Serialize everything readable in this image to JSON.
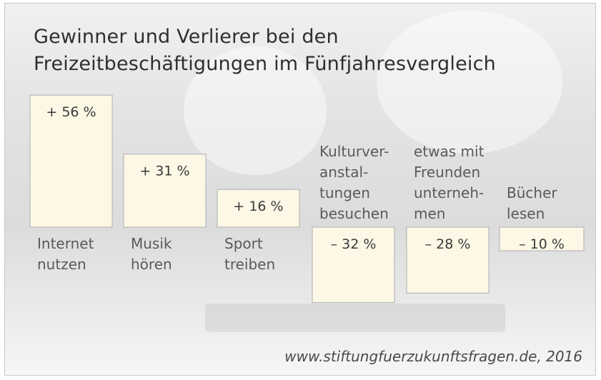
{
  "title_lines": [
    "Gewinner und Verlierer bei den",
    "Freizeitbeschäftigungen im Fünfjahresvergleich"
  ],
  "source": "www.stiftungfuerzukunftsfragen.de, 2016",
  "chart_data": {
    "type": "bar",
    "title": "Gewinner und Verlierer bei den Freizeitbeschäftigungen im Fünfjahresvergleich",
    "categories": [
      "Internet nutzen",
      "Musik hören",
      "Sport treiben",
      "Kulturveranstaltungen besuchen",
      "etwas mit Freunden unternehmen",
      "Bücher lesen"
    ],
    "category_label_lines": [
      [
        "Internet",
        "nutzen"
      ],
      [
        "Musik",
        "hören"
      ],
      [
        "Sport",
        "treiben"
      ],
      [
        "Kulturver-",
        "anstal-",
        "tungen",
        "besuchen"
      ],
      [
        "etwas mit",
        "Freunden",
        "unterneh-",
        "men"
      ],
      [
        "Bücher",
        "lesen"
      ]
    ],
    "values": [
      56,
      31,
      16,
      -32,
      -28,
      -10
    ],
    "value_labels": [
      "+ 56 %",
      "+ 31 %",
      "+ 16 %",
      "– 32 %",
      "– 28 %",
      "– 10 %"
    ],
    "unit": "%",
    "colors": {
      "bar_fill": "#fdf8e6",
      "bar_stroke": "#b8b8b8"
    },
    "grid": false
  }
}
